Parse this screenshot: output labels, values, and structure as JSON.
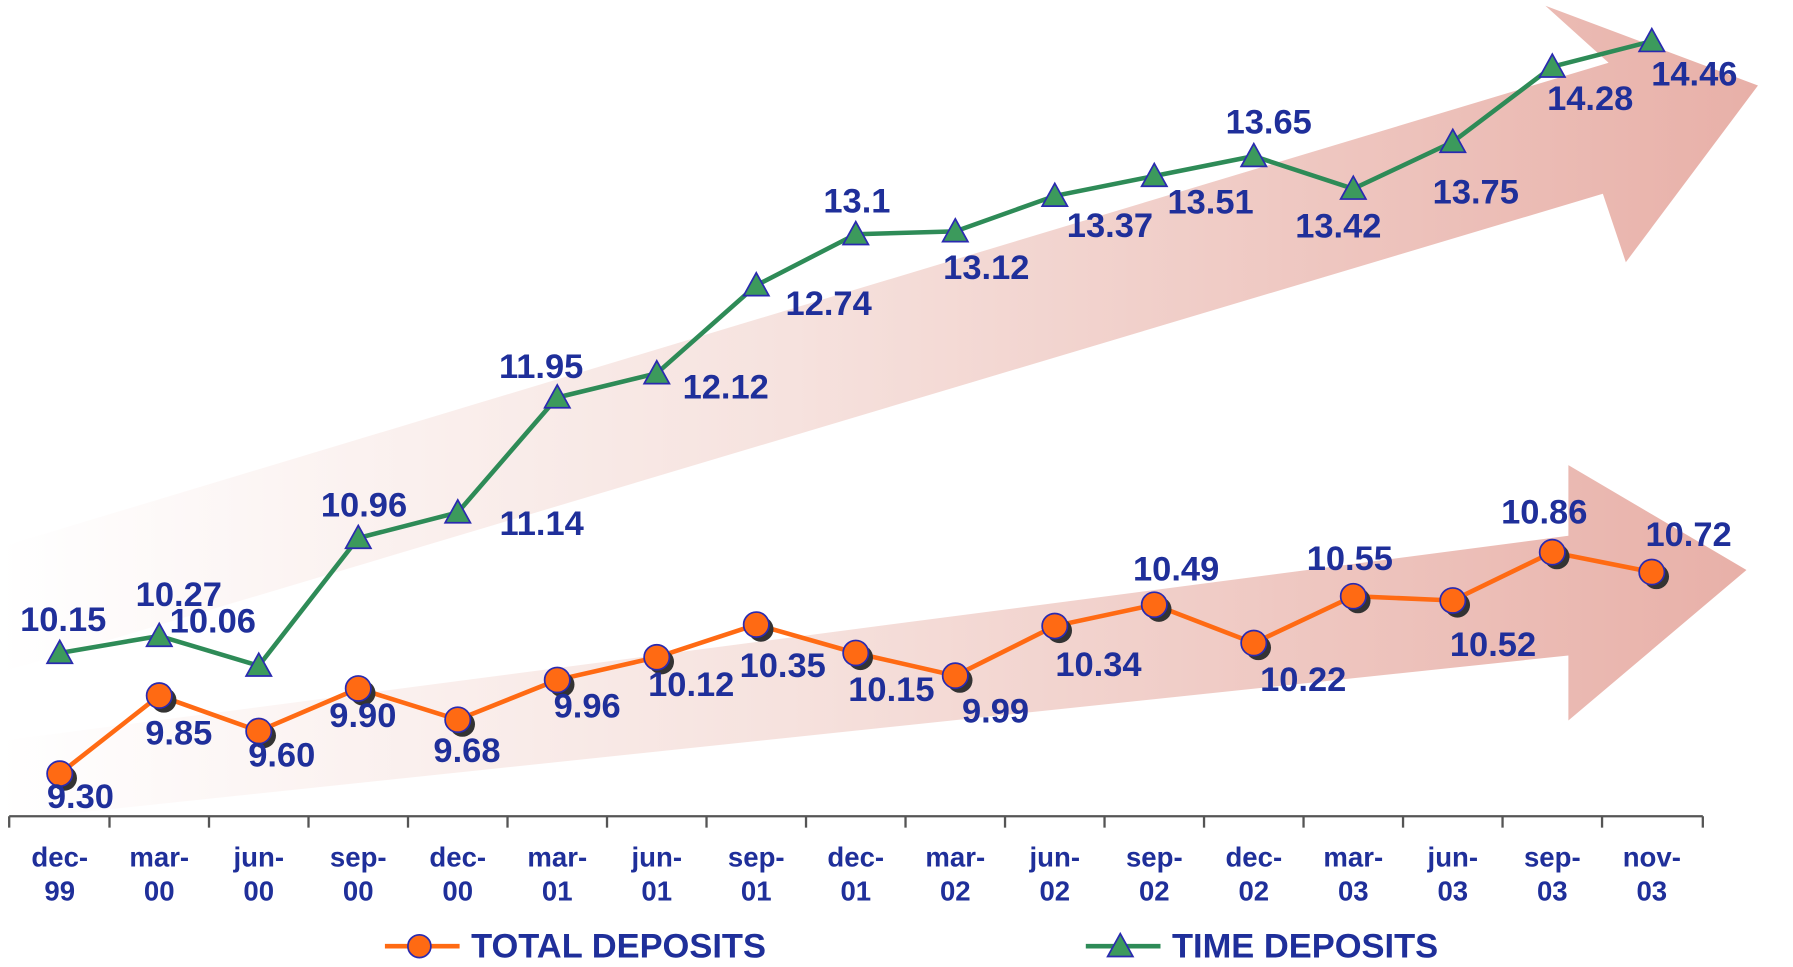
{
  "chart_data": {
    "type": "line",
    "categories": [
      "dec-99",
      "mar-00",
      "jun-00",
      "sep-00",
      "dec-00",
      "mar-01",
      "jun-01",
      "sep-01",
      "dec-01",
      "mar-02",
      "jun-02",
      "sep-02",
      "dec-02",
      "mar-03",
      "jun-03",
      "sep-03",
      "nov-03"
    ],
    "ylim": [
      9,
      14.75
    ],
    "series": [
      {
        "name": "TOTAL DEPOSITS",
        "color": "#ff6a13",
        "values": [
          9.3,
          9.85,
          9.6,
          9.9,
          9.68,
          9.96,
          10.12,
          10.35,
          10.15,
          9.99,
          10.34,
          10.49,
          10.22,
          10.55,
          10.52,
          10.86,
          10.72
        ],
        "value_labels": [
          "9.30",
          "9.85",
          "9.60",
          "9.90",
          "9.68",
          "9.96",
          "10.12",
          "10.35",
          "10.15",
          "9.99",
          "10.34",
          "10.49",
          "10.22",
          "10.55",
          "10.52",
          "10.86",
          "10.72"
        ]
      },
      {
        "name": "TIME DEPOSITS",
        "color": "#2e8b57",
        "values": [
          10.15,
          10.27,
          10.06,
          10.96,
          11.14,
          11.95,
          12.12,
          12.74,
          13.1,
          13.12,
          13.37,
          13.51,
          13.65,
          13.42,
          13.75,
          14.28,
          14.46
        ]
      }
    ]
  }
}
